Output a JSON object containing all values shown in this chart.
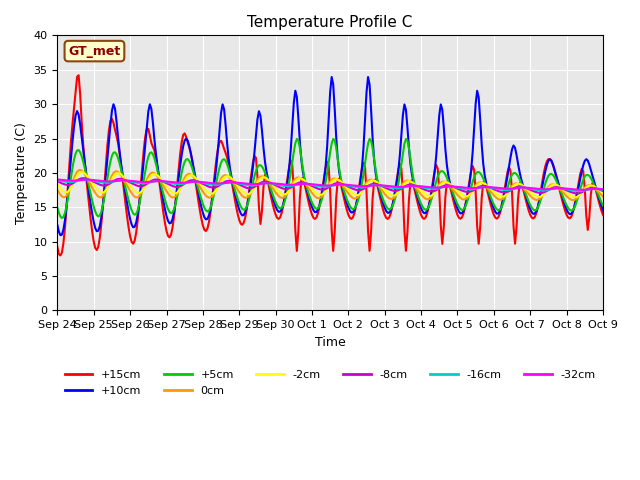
{
  "title": "Temperature Profile C",
  "xlabel": "Time",
  "ylabel": "Temperature (C)",
  "ylim": [
    0,
    40
  ],
  "yticks": [
    0,
    5,
    10,
    15,
    20,
    25,
    30,
    35,
    40
  ],
  "background_color": "#e8e8e8",
  "plot_bg_color": "#e8e8e8",
  "legend_label": "GT_met",
  "series": {
    "+15cm": {
      "color": "#ff0000",
      "lw": 1.5
    },
    "+10cm": {
      "color": "#0000ff",
      "lw": 1.5
    },
    "+5cm": {
      "color": "#00cc00",
      "lw": 1.5
    },
    "0cm": {
      "color": "#ff9900",
      "lw": 1.5
    },
    "-2cm": {
      "color": "#ffff00",
      "lw": 1.5
    },
    "-8cm": {
      "color": "#cc00cc",
      "lw": 1.5
    },
    "-16cm": {
      "color": "#00cccc",
      "lw": 1.5
    },
    "-32cm": {
      "color": "#ff00ff",
      "lw": 1.5
    }
  },
  "x_tick_labels": [
    "Sep 24",
    "Sep 25",
    "Sep 26",
    "Sep 27",
    "Sep 28",
    "Sep 29",
    "Sep 30",
    "Oct 1",
    "Oct 2",
    "Oct 3",
    "Oct 4",
    "Oct 5",
    "Oct 6",
    "Oct 7",
    "Oct 8",
    "Oct 9"
  ],
  "n_days": 16,
  "samples_per_day": 24
}
